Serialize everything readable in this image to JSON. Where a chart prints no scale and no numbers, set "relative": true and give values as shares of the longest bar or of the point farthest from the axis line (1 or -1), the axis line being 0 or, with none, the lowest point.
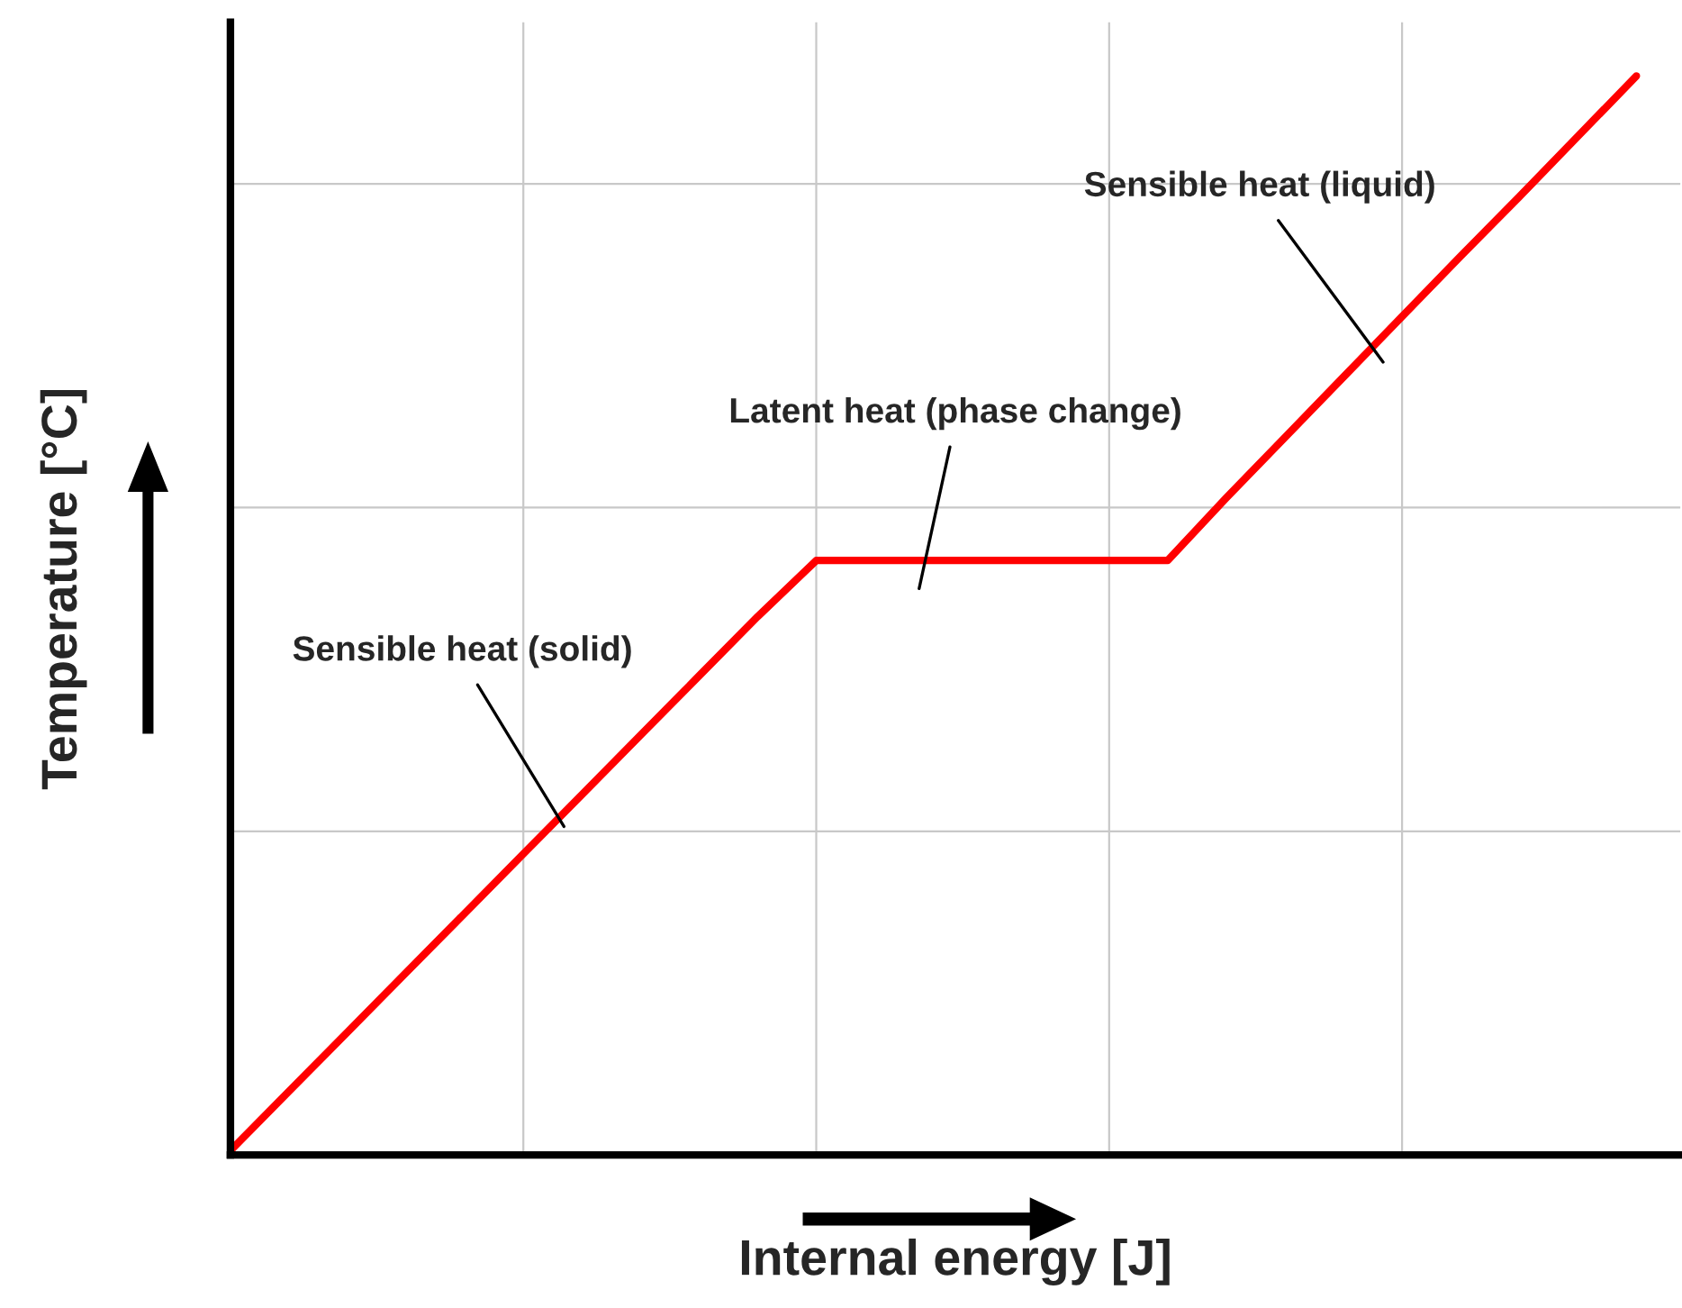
{
  "chart_data": {
    "type": "line",
    "relative": true,
    "xlabel": "Internal energy [J]",
    "ylabel": "Temperature [°C]",
    "categories": [
      null,
      null,
      null,
      null,
      null,
      null,
      null,
      null,
      null,
      null,
      null,
      null,
      null,
      null,
      null,
      null,
      null,
      null,
      null,
      null,
      null,
      null,
      null,
      null,
      null
    ],
    "series": [
      {
        "color": "#ff0000",
        "values": [
          0.004,
          0.059,
          0.114,
          0.169,
          0.224,
          0.279,
          0.334,
          0.389,
          0.444,
          0.499,
          0.551,
          0.551,
          0.551,
          0.551,
          0.551,
          0.551,
          0.551,
          0.609,
          0.665,
          0.721,
          0.777,
          0.833,
          0.888,
          0.944,
          1.0
        ]
      }
    ],
    "grid": true,
    "annotations": [
      "Sensible heat (solid)",
      "Latent heat (phase change)",
      "Sensible heat (liquid)"
    ]
  }
}
